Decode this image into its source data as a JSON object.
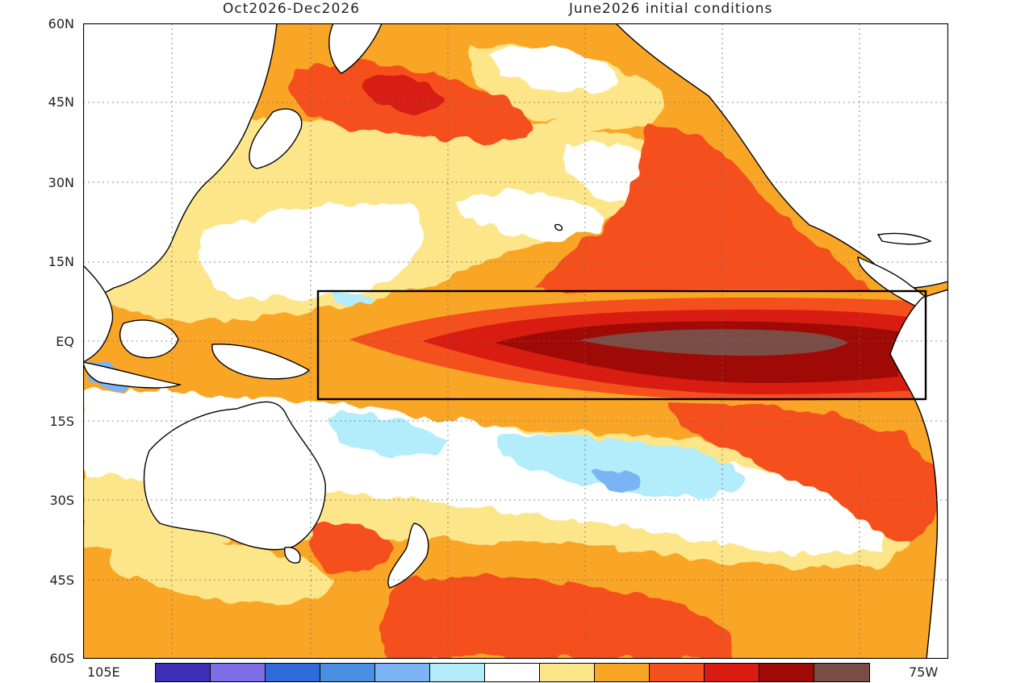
{
  "header": {
    "left_title": "Oct2026-Dec2026",
    "right_title": "June2026 initial conditions"
  },
  "axes": {
    "lat_labels": [
      "60N",
      "45N",
      "30N",
      "15N",
      "EQ",
      "15S",
      "30S",
      "45S",
      "60S"
    ],
    "lon_left_label": "105E",
    "lon_right_label": "75W"
  },
  "colorbar": {
    "colors": [
      "#3d2fb5",
      "#7d6ee6",
      "#2e6ad8",
      "#4a90e2",
      "#7ab4f5",
      "#b3ecfa",
      "#ffffff",
      "#fde68a",
      "#f9a627",
      "#f4501d",
      "#d81c12",
      "#a00a06",
      "#7a4e46"
    ]
  },
  "colors": {
    "land_outline": "#000000",
    "ocean_neutral": "#ffffff",
    "region_box": "#000000"
  }
}
